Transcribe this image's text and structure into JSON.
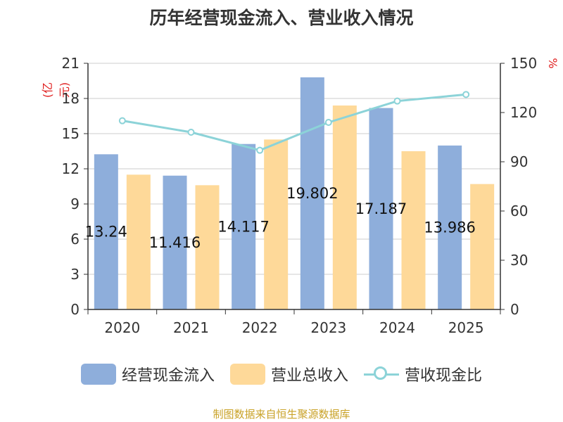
{
  "title": "历年经营现金流入、营业收入情况",
  "unit_left": "(亿元)",
  "unit_right": "%",
  "source": "制图数据来自恒生聚源数据库",
  "colors": {
    "bar_cash": "#8eaedb",
    "bar_revenue": "#fed999",
    "line_ratio": "#8cd3d8",
    "label_unit": "#e02020",
    "source": "#c9a227"
  },
  "chart_data": {
    "type": "bar",
    "categories": [
      "2020",
      "2021",
      "2022",
      "2023",
      "2024",
      "2025"
    ],
    "series": [
      {
        "name": "经营现金流入",
        "axis": "left",
        "values": [
          13.24,
          11.416,
          14.117,
          19.802,
          17.187,
          13.986
        ],
        "data_labels": [
          "13.24",
          "11.416",
          "14.117",
          "19.802",
          "17.187",
          "13.986"
        ]
      },
      {
        "name": "营业总收入",
        "axis": "left",
        "values": [
          11.5,
          10.6,
          14.5,
          17.4,
          13.5,
          10.7
        ]
      },
      {
        "name": "营收现金比",
        "axis": "right",
        "type": "line",
        "values": [
          115,
          108,
          97,
          114,
          127,
          131
        ]
      }
    ],
    "y_left": {
      "min": 0,
      "max": 21,
      "ticks": [
        0,
        3,
        6,
        9,
        12,
        15,
        18,
        21
      ]
    },
    "y_right": {
      "min": 0,
      "max": 150,
      "ticks": [
        0,
        30,
        60,
        90,
        120,
        150
      ]
    },
    "grid": true,
    "legend_position": "bottom"
  }
}
